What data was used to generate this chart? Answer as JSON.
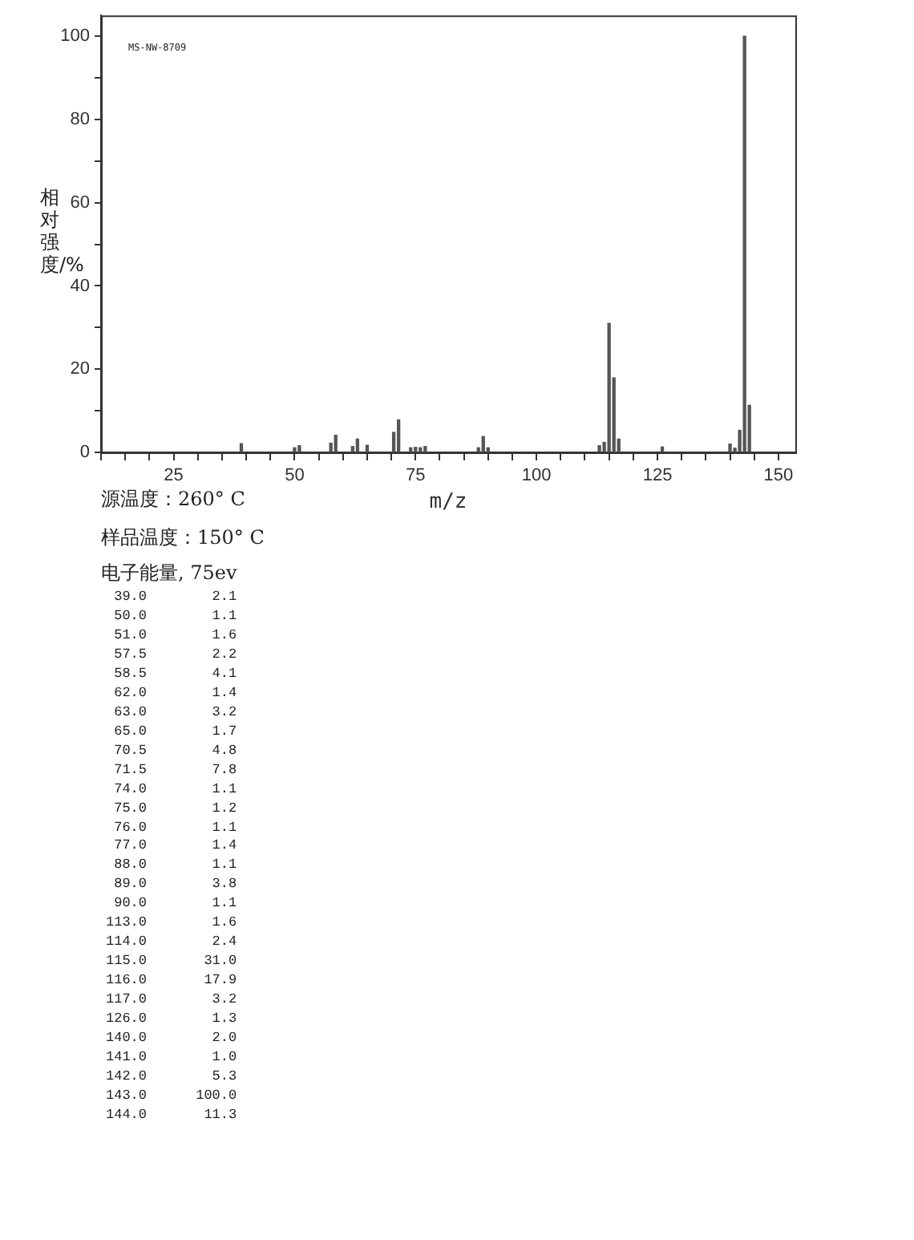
{
  "chart_data": {
    "type": "bar",
    "xlabel": "m/z",
    "ylabel": "相对强度/%",
    "x": [
      39,
      50,
      51,
      57.5,
      58.5,
      62,
      63,
      65,
      70.5,
      71.5,
      74,
      75,
      76,
      77,
      88,
      89,
      90,
      113,
      114,
      115,
      116,
      117,
      126,
      140,
      141,
      142,
      143,
      144
    ],
    "values": [
      2.1,
      1.1,
      1.6,
      2.2,
      4.1,
      1.4,
      3.2,
      1.7,
      4.8,
      7.8,
      1.1,
      1.2,
      1.1,
      1.4,
      1.1,
      3.8,
      1.1,
      1.6,
      2.4,
      31.0,
      17.9,
      3.2,
      1.3,
      2.0,
      1.0,
      5.3,
      100.0,
      11.3
    ],
    "color": "#555555",
    "xlim": [
      10,
      153.5
    ],
    "xticks": [
      {
        "value": 10,
        "label": null
      },
      {
        "value": 15,
        "label": null
      },
      {
        "value": 20,
        "label": null
      },
      25,
      {
        "value": 30,
        "label": null
      },
      {
        "value": 35,
        "label": null
      },
      {
        "value": 40,
        "label": null
      },
      {
        "value": 45,
        "label": null
      },
      50,
      {
        "value": 55,
        "label": null
      },
      {
        "value": 60,
        "label": null
      },
      {
        "value": 65,
        "label": null
      },
      {
        "value": 70,
        "label": null
      },
      75,
      {
        "value": 80,
        "label": null
      },
      {
        "value": 85,
        "label": null
      },
      {
        "value": 90,
        "label": null
      },
      {
        "value": 95,
        "label": null
      },
      100,
      {
        "value": 105,
        "label": null
      },
      {
        "value": 110,
        "label": null
      },
      {
        "value": 115,
        "label": null
      },
      {
        "value": 120,
        "label": null
      },
      125,
      {
        "value": 130,
        "label": null
      },
      {
        "value": 135,
        "label": null
      },
      {
        "value": 140,
        "label": null
      },
      {
        "value": 145,
        "label": null
      },
      150
    ],
    "ylim": [
      0,
      105
    ],
    "yticks": [
      0,
      {
        "value": 10,
        "label": null
      },
      20,
      {
        "value": 30,
        "label": null
      },
      40,
      {
        "value": 50,
        "label": null
      },
      60,
      {
        "value": 70,
        "label": null
      },
      80,
      {
        "value": 90,
        "label": null
      },
      100
    ],
    "grid": false,
    "legend": false,
    "annotations": [
      "MS-NW-8709",
      "源温度：260° C",
      "样品温度：150° C",
      "电子能量, 75ev",
      " 39.0        2.1",
      " 50.0        1.1",
      " 51.0        1.6",
      " 57.5        2.2",
      " 58.5        4.1",
      " 62.0        1.4",
      " 63.0        3.2",
      " 65.0        1.7",
      " 70.5        4.8",
      " 71.5        7.8",
      " 74.0        1.1",
      " 75.0        1.2",
      " 76.0        1.1",
      " 77.0        1.4",
      " 88.0        1.1",
      " 89.0        3.8",
      " 90.0        1.1",
      "113.0        1.6",
      "114.0        2.4",
      "115.0       31.0",
      "116.0       17.9",
      "117.0        3.2",
      "126.0        1.3",
      "140.0        2.0",
      "141.0        1.0",
      "142.0        5.3",
      "143.0      100.0",
      "144.0       11.3"
    ]
  }
}
